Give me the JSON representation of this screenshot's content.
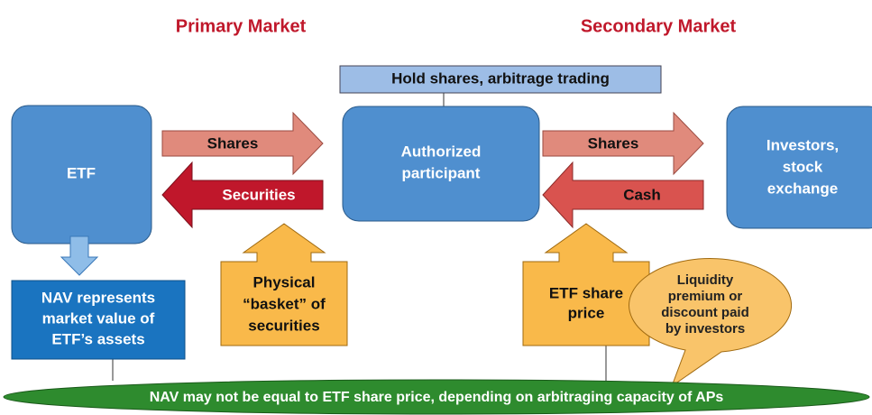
{
  "header": {
    "left": "Primary Market",
    "right": "Secondary Market"
  },
  "nodes": [
    {
      "label": [
        "ETF"
      ]
    },
    {
      "label": [
        "Authorized",
        "participant"
      ]
    },
    {
      "label": [
        "Investors,",
        "stock",
        "exchange"
      ]
    },
    {
      "label": [
        "Hold shares, arbitrage trading"
      ]
    },
    {
      "label": [
        "NAV represents",
        "market value of",
        "ETF’s assets"
      ]
    },
    {
      "label": [
        "Physical",
        "“basket” of",
        "securities"
      ]
    },
    {
      "label": [
        "ETF share",
        "price"
      ]
    },
    {
      "label": [
        "Liquidity",
        "premium or",
        "discount paid",
        "by investors"
      ]
    },
    {
      "label": [
        "NAV may not be equal to ETF share price, depending on arbitraging capacity of APs"
      ]
    }
  ],
  "arrows": [
    {
      "label": "Shares"
    },
    {
      "label": "Securities"
    },
    {
      "label": "Shares"
    },
    {
      "label": "Cash"
    }
  ]
}
